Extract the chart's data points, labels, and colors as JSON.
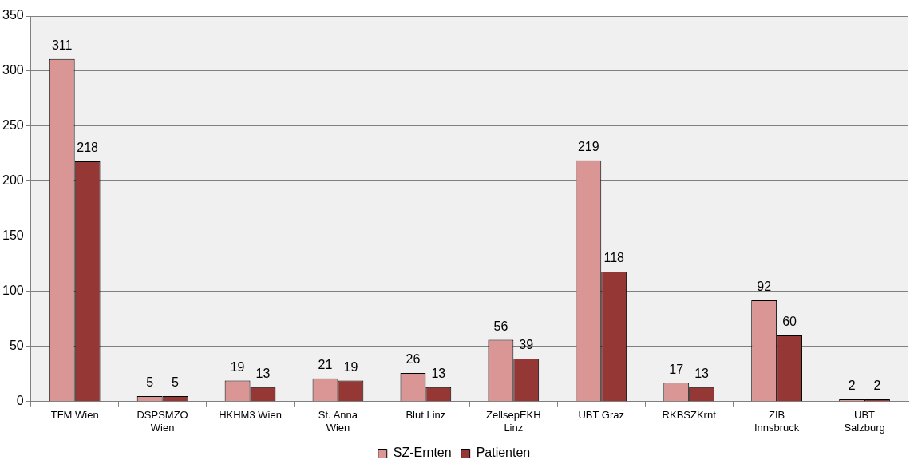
{
  "chart_data": {
    "type": "bar",
    "categories": [
      "TFM Wien",
      "DSPSMZO Wien",
      "HKHM3 Wien",
      "St. Anna Wien",
      "Blut Linz",
      "ZellsepEKH Linz",
      "UBT Graz",
      "RKBSZKrnt",
      "ZIB Innsbruck",
      "UBT Salzburg"
    ],
    "series": [
      {
        "name": "SZ-Ernten",
        "color": "#d99694",
        "values": [
          311,
          5,
          19,
          21,
          26,
          56,
          219,
          17,
          92,
          2
        ]
      },
      {
        "name": "Patienten",
        "color": "#953735",
        "values": [
          218,
          5,
          13,
          19,
          13,
          39,
          118,
          13,
          60,
          2
        ]
      }
    ],
    "ylim": [
      0,
      350
    ],
    "yticks": [
      0,
      50,
      100,
      150,
      200,
      250,
      300,
      350
    ],
    "grid": "y",
    "legend": "bottom",
    "data_labels": true
  }
}
